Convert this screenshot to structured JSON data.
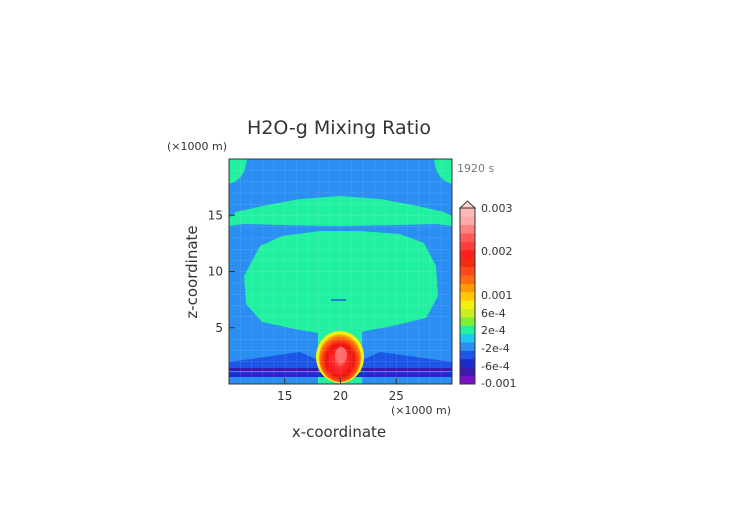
{
  "chart_data": {
    "type": "heatmap",
    "title": "H2O-g Mixing Ratio",
    "xlabel": "x-coordinate",
    "ylabel": "z-coordinate",
    "x_unit": "(×1000 m)",
    "y_unit": "(×1000 m)",
    "time_label": "1920 s",
    "xlim": [
      10,
      30
    ],
    "ylim": [
      0,
      20
    ],
    "x_ticks": [
      15,
      20,
      25
    ],
    "y_ticks": [
      5,
      10,
      15
    ],
    "background_value": "-2e-4",
    "regions": [
      {
        "name": "upper band",
        "value": "2e-4",
        "color": "#20f0a0"
      },
      {
        "name": "middle anvil",
        "value": "2e-4",
        "color": "#20f0a0"
      },
      {
        "name": "stem",
        "value": "2e-4",
        "color": "#20f0a0"
      },
      {
        "name": "core",
        "value": "0.002",
        "color": "#ff1e1e"
      },
      {
        "name": "near-surface negative layer",
        "value": "-6e-4",
        "color": "#1a2bd0"
      }
    ],
    "colorbar": {
      "labels": [
        "0.003",
        "0.002",
        "0.001",
        "6e-4",
        "2e-4",
        "-2e-4",
        "-6e-4",
        "-0.001"
      ],
      "colors": [
        "#7a10c8",
        "#3c1ab0",
        "#1a2bd0",
        "#1c56e6",
        "#2a8ef2",
        "#1ec7f0",
        "#20f0a0",
        "#7ef030",
        "#c8ee20",
        "#f2f010",
        "#ffc800",
        "#ff9a00",
        "#ff6a10",
        "#ff4818",
        "#f22c12",
        "#ff1e1e",
        "#ff3c3c",
        "#ff5a5a",
        "#ff8080",
        "#ffa8a8",
        "#ffb8b8"
      ]
    }
  }
}
